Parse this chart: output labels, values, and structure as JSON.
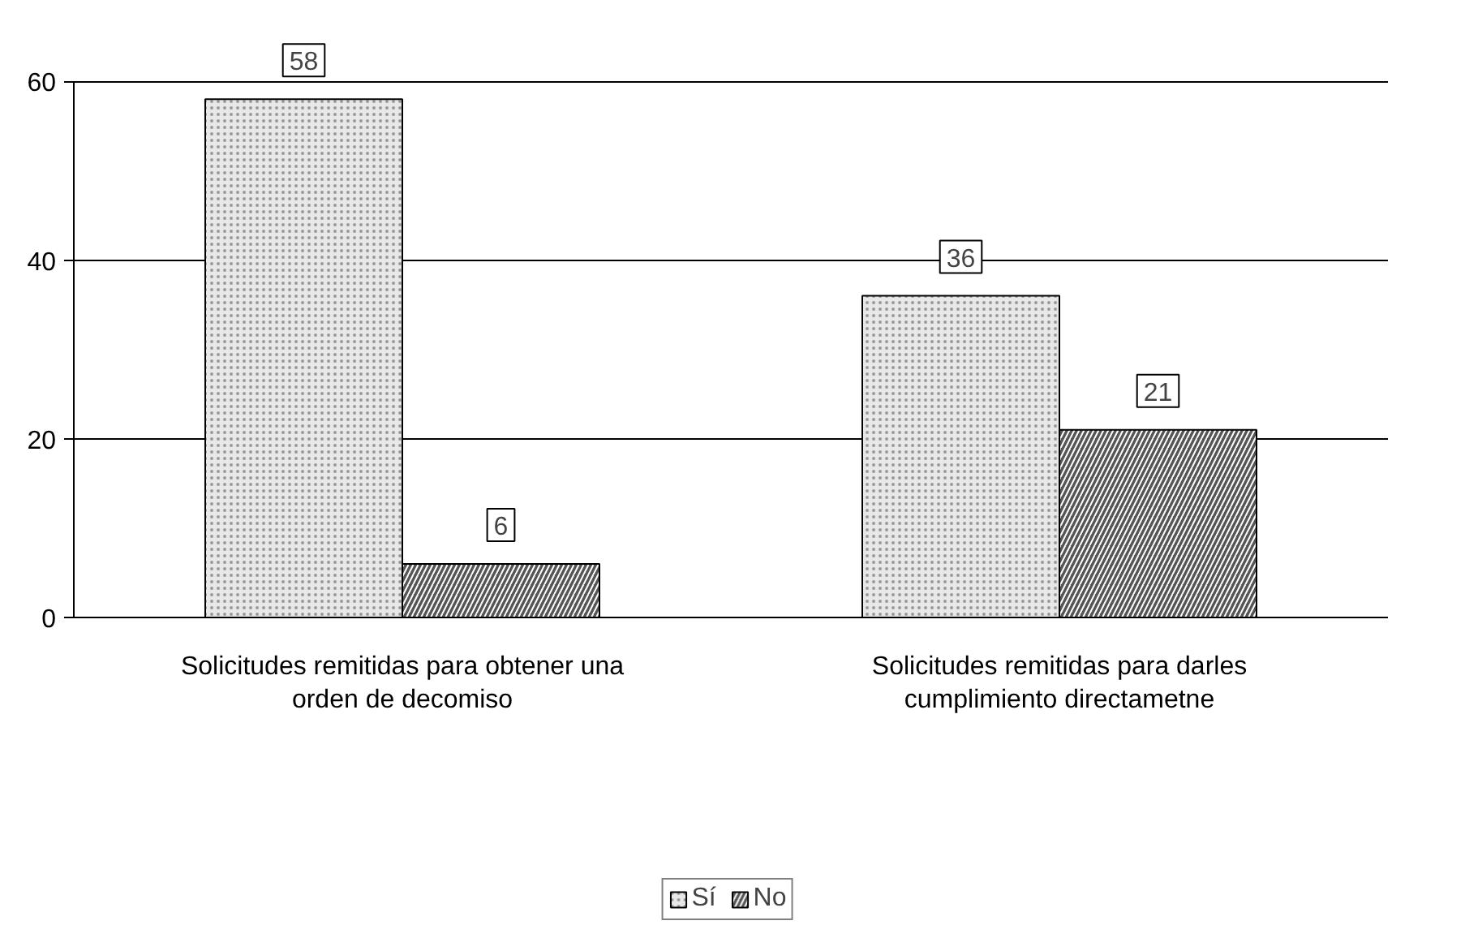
{
  "chart_data": {
    "type": "bar",
    "categories": [
      "Solicitudes remitidas para obtener una orden de decomiso",
      "Solicitudes remitidas para darles cumplimiento directametne"
    ],
    "series": [
      {
        "name": "Sí",
        "color": "#e8e8e8",
        "values": [
          58,
          36
        ]
      },
      {
        "name": "No",
        "color": "#555555",
        "values": [
          6,
          21
        ]
      }
    ],
    "ylim": [
      0,
      60
    ],
    "yticks": [
      0,
      20,
      40,
      60
    ],
    "grid": "y",
    "legend": "bottom",
    "data_labels": true
  }
}
